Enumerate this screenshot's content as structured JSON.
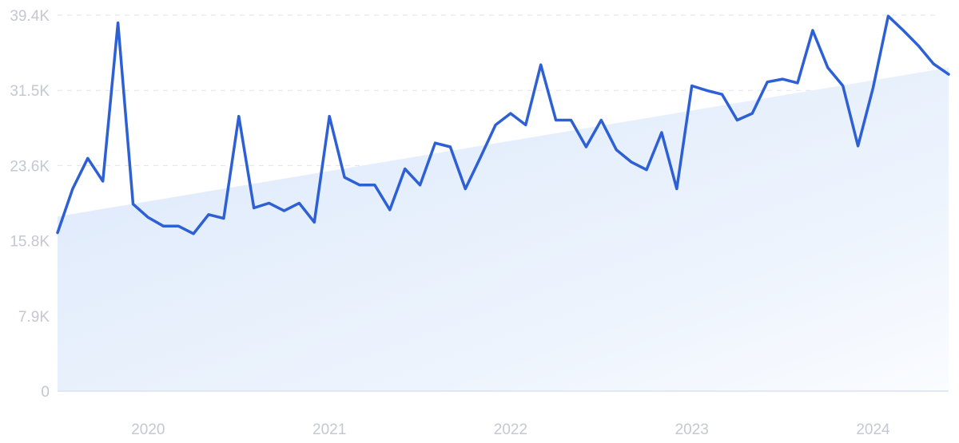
{
  "chart_data": {
    "type": "line",
    "title": "",
    "xlabel": "",
    "ylabel": "",
    "grid": true,
    "legend": "none",
    "x_start": "2019-07",
    "x_interval": "month",
    "x_tick_labels": [
      "2020",
      "2021",
      "2022",
      "2023",
      "2024"
    ],
    "y_tick_labels": [
      "0",
      "7.9K",
      "15.8K",
      "23.6K",
      "31.5K",
      "39.4K"
    ],
    "ylim": [
      0,
      39400
    ],
    "series": [
      {
        "values": [
          16600,
          21200,
          24400,
          22000,
          38600,
          19600,
          18200,
          17300,
          17300,
          16500,
          18500,
          18100,
          28800,
          19200,
          19700,
          18900,
          19700,
          17700,
          28800,
          22400,
          21600,
          21600,
          19000,
          23300,
          21600,
          26000,
          25600,
          21200,
          24500,
          27900,
          29100,
          27900,
          34200,
          28400,
          28400,
          25600,
          28400,
          25300,
          24000,
          23200,
          27100,
          21200,
          32000,
          31500,
          31100,
          28400,
          29100,
          32400,
          32700,
          32300,
          37800,
          33900,
          32000,
          25700,
          31800,
          39300,
          37800,
          36200,
          34300,
          33200
        ]
      }
    ],
    "trend": {
      "start": 18300,
      "end": 33900
    },
    "colors": {
      "line": "#2d5fd5",
      "area": "#dce8fb",
      "tick_text": "#c4c8d0",
      "grid": "#dfe3ea"
    }
  }
}
